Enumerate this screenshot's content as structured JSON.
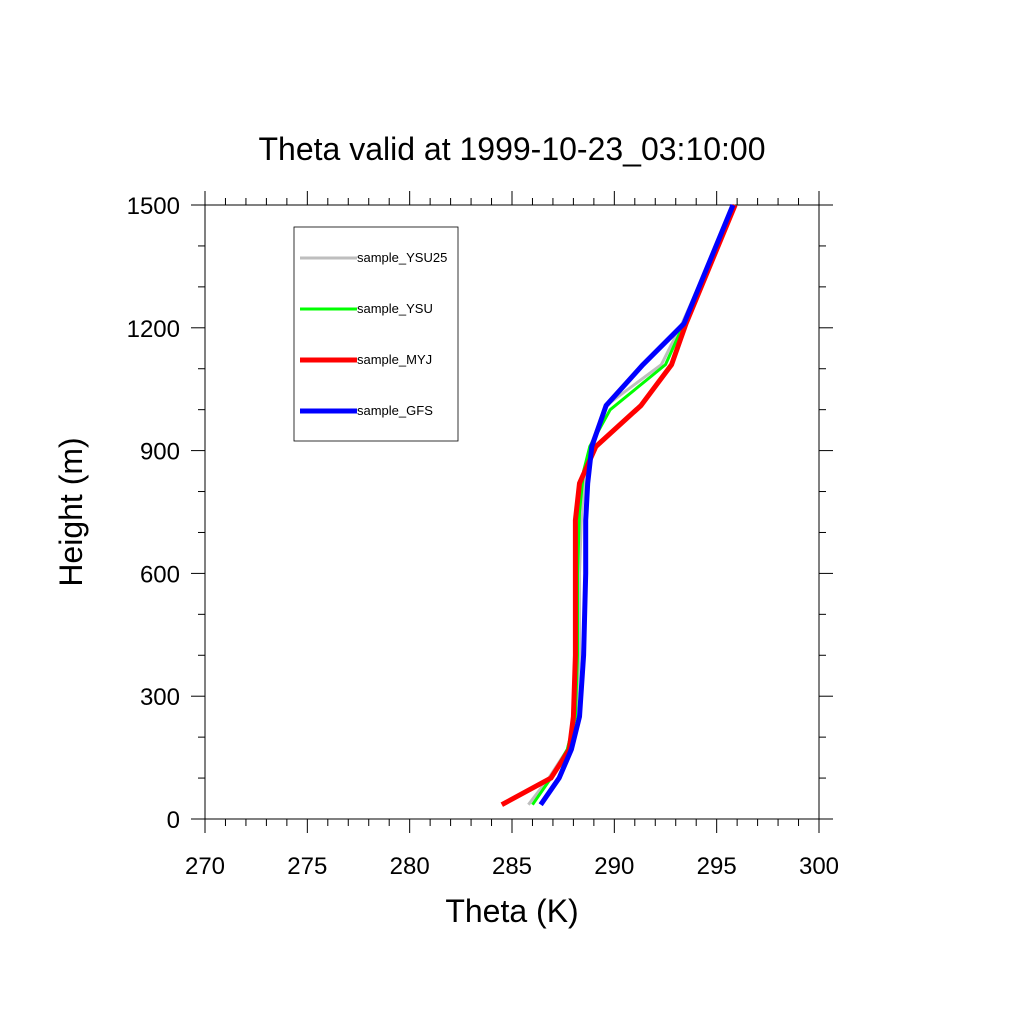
{
  "chart_data": {
    "type": "line",
    "title": "Theta valid at 1999-10-23_03:10:00",
    "xlabel": "Theta (K)",
    "ylabel": "Height (m)",
    "xlim": [
      270,
      300
    ],
    "ylim": [
      0,
      1500
    ],
    "xticks": [
      "270",
      "275",
      "280",
      "285",
      "290",
      "295",
      "300"
    ],
    "yticks": [
      "0",
      "300",
      "600",
      "900",
      "1200",
      "1500"
    ],
    "grid": false,
    "legend_position": "top-left",
    "series": [
      {
        "name": "sample_YSU25",
        "color": "#bebebe",
        "points": [
          [
            285.8,
            35
          ],
          [
            286.8,
            100
          ],
          [
            287.7,
            170
          ],
          [
            288.1,
            250
          ],
          [
            288.3,
            400
          ],
          [
            288.3,
            600
          ],
          [
            288.4,
            750
          ],
          [
            288.6,
            850
          ],
          [
            288.9,
            920
          ],
          [
            289.6,
            1010
          ],
          [
            292.3,
            1110
          ],
          [
            293.3,
            1210
          ],
          [
            295.9,
            1500
          ]
        ]
      },
      {
        "name": "sample_YSU",
        "color": "#00ff00",
        "points": [
          [
            286.0,
            35
          ],
          [
            286.9,
            100
          ],
          [
            287.7,
            170
          ],
          [
            288.1,
            250
          ],
          [
            288.2,
            400
          ],
          [
            288.2,
            600
          ],
          [
            288.3,
            750
          ],
          [
            288.5,
            850
          ],
          [
            288.8,
            910
          ],
          [
            289.8,
            1000
          ],
          [
            292.5,
            1110
          ],
          [
            293.4,
            1210
          ],
          [
            295.9,
            1500
          ]
        ]
      },
      {
        "name": "sample_MYJ",
        "color": "#ff0000",
        "points": [
          [
            284.5,
            35
          ],
          [
            286.9,
            100
          ],
          [
            287.8,
            170
          ],
          [
            288.0,
            250
          ],
          [
            288.1,
            400
          ],
          [
            288.1,
            600
          ],
          [
            288.1,
            730
          ],
          [
            288.3,
            820
          ],
          [
            289.1,
            910
          ],
          [
            291.3,
            1010
          ],
          [
            292.8,
            1110
          ],
          [
            293.5,
            1210
          ],
          [
            295.9,
            1500
          ]
        ]
      },
      {
        "name": "sample_GFS",
        "color": "#0000ff",
        "points": [
          [
            286.4,
            35
          ],
          [
            287.3,
            100
          ],
          [
            287.9,
            170
          ],
          [
            288.3,
            250
          ],
          [
            288.5,
            400
          ],
          [
            288.6,
            600
          ],
          [
            288.6,
            730
          ],
          [
            288.7,
            820
          ],
          [
            288.9,
            910
          ],
          [
            289.6,
            1010
          ],
          [
            291.4,
            1110
          ],
          [
            293.4,
            1210
          ],
          [
            295.8,
            1500
          ]
        ]
      }
    ]
  }
}
